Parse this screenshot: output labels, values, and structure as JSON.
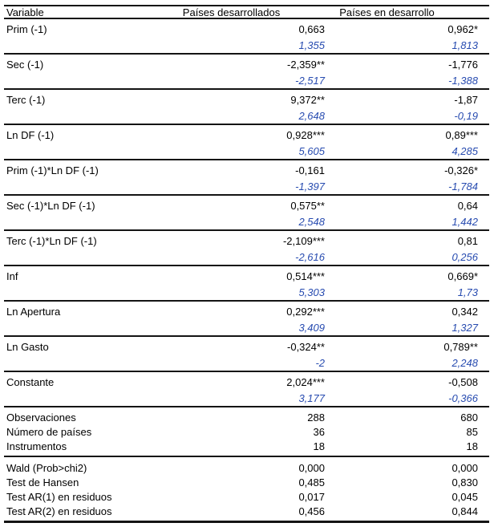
{
  "table": {
    "header": {
      "variable": "Variable",
      "developed": "Países desarrollados",
      "developing": "Países en desarrollo"
    },
    "coefficients": [
      {
        "variable": "Prim (-1)",
        "developed": "0,663",
        "developed_t": "1,355",
        "developing": "0,962*",
        "developing_t": "1,813"
      },
      {
        "variable": "Sec (-1)",
        "developed": "-2,359**",
        "developed_t": "-2,517",
        "developing": "-1,776",
        "developing_t": "-1,388"
      },
      {
        "variable": "Terc (-1)",
        "developed": "9,372**",
        "developed_t": "2,648",
        "developing": "-1,87",
        "developing_t": "-0,19"
      },
      {
        "variable": "Ln DF (-1)",
        "developed": "0,928***",
        "developed_t": "5,605",
        "developing": "0,89***",
        "developing_t": "4,285"
      },
      {
        "variable": "Prim (-1)*Ln DF (-1)",
        "developed": "-0,161",
        "developed_t": "-1,397",
        "developing": "-0,326*",
        "developing_t": "-1,784"
      },
      {
        "variable": "Sec (-1)*Ln DF (-1)",
        "developed": "0,575**",
        "developed_t": "2,548",
        "developing": "0,64",
        "developing_t": "1,442"
      },
      {
        "variable": "Terc (-1)*Ln DF (-1)",
        "developed": "-2,109***",
        "developed_t": "-2,616",
        "developing": "0,81",
        "developing_t": "0,256"
      },
      {
        "variable": "Inf",
        "developed": "0,514***",
        "developed_t": "5,303",
        "developing": "0,669*",
        "developing_t": "1,73"
      },
      {
        "variable": "Ln Apertura",
        "developed": "0,292***",
        "developed_t": "3,409",
        "developing": "0,342",
        "developing_t": "1,327"
      },
      {
        "variable": "Ln Gasto",
        "developed": "-0,324**",
        "developed_t": "-2",
        "developing": "0,789**",
        "developing_t": "2,248"
      },
      {
        "variable": "Constante",
        "developed": "2,024***",
        "developed_t": "3,177",
        "developing": "-0,508",
        "developing_t": "-0,366"
      }
    ],
    "sample_stats": [
      {
        "label": "Observaciones",
        "developed": "288",
        "developing": "680"
      },
      {
        "label": "Número de países",
        "developed": "36",
        "developing": "85"
      },
      {
        "label": "Instrumentos",
        "developed": "18",
        "developing": "18"
      }
    ],
    "test_stats": [
      {
        "label": "Wald (Prob>chi2)",
        "developed": "0,000",
        "developing": "0,000"
      },
      {
        "label": "Test de Hansen",
        "developed": "0,485",
        "developing": "0,830"
      },
      {
        "label": "Test AR(1) en residuos",
        "developed": "0,017",
        "developing": "0,045"
      },
      {
        "label": "Test AR(2) en residuos",
        "developed": "0,456",
        "developing": "0,844"
      }
    ]
  },
  "colors": {
    "text": "#000000",
    "tstat_blue": "#274BB0",
    "rule": "#141414"
  }
}
